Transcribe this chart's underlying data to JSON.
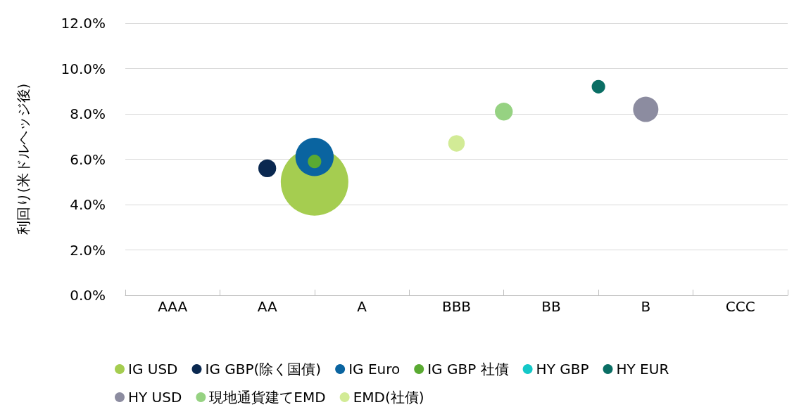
{
  "chart_data": {
    "type": "bubble",
    "ylabel": "利回り(米ドルヘッジ後)",
    "categories": [
      null,
      "AAA",
      null,
      "AA",
      null,
      "A",
      null,
      "BBB",
      null,
      "BB",
      null,
      "B",
      null,
      "CCC",
      null
    ],
    "ylim": [
      0,
      12
    ],
    "yticks": [
      {
        "value": 0,
        "label": "0.0%"
      },
      {
        "value": 2,
        "label": "2.0%"
      },
      {
        "value": 4,
        "label": "4.0%"
      },
      {
        "value": 6,
        "label": "6.0%"
      },
      {
        "value": 8,
        "label": "8.0%"
      },
      {
        "value": 10,
        "label": "10.0%"
      },
      {
        "value": 12,
        "label": "12.0%"
      }
    ],
    "grid": "y",
    "legend": "bottom",
    "series": [
      {
        "name": "IG USD",
        "color": "#a5cd50",
        "values": [
          null,
          null,
          null,
          null,
          5.0,
          null,
          null,
          null,
          null,
          null,
          null,
          null,
          null,
          null,
          null
        ],
        "sizes": [
          null,
          null,
          null,
          null,
          1,
          null,
          null,
          null,
          null,
          null,
          null,
          null,
          null,
          null,
          null
        ]
      },
      {
        "name": "IG GBP(除く国債)",
        "color": "#0a2850",
        "values": [
          null,
          null,
          null,
          5.6,
          null,
          null,
          null,
          null,
          null,
          null,
          null,
          null,
          null,
          null,
          null
        ],
        "sizes": [
          null,
          null,
          null,
          0.07,
          null,
          null,
          null,
          null,
          null,
          null,
          null,
          null,
          null,
          null,
          null
        ]
      },
      {
        "name": "IG Euro",
        "color": "#0a64a0",
        "values": [
          null,
          null,
          null,
          null,
          6.1,
          null,
          null,
          null,
          null,
          null,
          null,
          null,
          null,
          null,
          null
        ],
        "sizes": [
          null,
          null,
          null,
          null,
          0.32,
          null,
          null,
          null,
          null,
          null,
          null,
          null,
          null,
          null,
          null
        ]
      },
      {
        "name": "IG GBP 社債",
        "color": "#5aaa32",
        "values": [
          null,
          null,
          null,
          null,
          5.9,
          null,
          null,
          null,
          null,
          null,
          null,
          null,
          null,
          null,
          null
        ],
        "sizes": [
          null,
          null,
          null,
          null,
          0.04,
          null,
          null,
          null,
          null,
          null,
          null,
          null,
          null,
          null,
          null
        ]
      },
      {
        "name": "HY GBP",
        "color": "#14c8c8",
        "values": [
          null,
          null,
          null,
          null,
          null,
          null,
          null,
          null,
          null,
          null,
          9.0,
          null,
          null,
          null,
          null
        ],
        "sizes": [
          null,
          null,
          null,
          null,
          null,
          null,
          null,
          null,
          null,
          null,
          0.004,
          null,
          null,
          null,
          null
        ]
      },
      {
        "name": "HY EUR",
        "color": "#0a6e64",
        "values": [
          null,
          null,
          null,
          null,
          null,
          null,
          null,
          null,
          null,
          null,
          9.2,
          null,
          null,
          null,
          null
        ],
        "sizes": [
          null,
          null,
          null,
          null,
          null,
          null,
          null,
          null,
          null,
          null,
          0.04,
          null,
          null,
          null,
          null
        ]
      },
      {
        "name": "HY USD",
        "color": "#8c8ca0",
        "values": [
          null,
          null,
          null,
          null,
          null,
          null,
          null,
          null,
          null,
          null,
          null,
          8.2,
          null,
          null,
          null
        ],
        "sizes": [
          null,
          null,
          null,
          null,
          null,
          null,
          null,
          null,
          null,
          null,
          null,
          0.14,
          null,
          null,
          null
        ]
      },
      {
        "name": "現地通貨建てEMD",
        "color": "#96d282",
        "values": [
          null,
          null,
          null,
          null,
          null,
          null,
          null,
          null,
          8.1,
          null,
          null,
          null,
          null,
          null,
          null
        ],
        "sizes": [
          null,
          null,
          null,
          null,
          null,
          null,
          null,
          null,
          0.07,
          null,
          null,
          null,
          null,
          null,
          null
        ]
      },
      {
        "name": "EMD(社債)",
        "color": "#d2eb96",
        "values": [
          null,
          null,
          null,
          null,
          null,
          null,
          null,
          6.7,
          null,
          null,
          null,
          null,
          null,
          null,
          null
        ],
        "sizes": [
          null,
          null,
          null,
          null,
          null,
          null,
          null,
          0.06,
          null,
          null,
          null,
          null,
          null,
          null,
          null
        ]
      }
    ]
  }
}
